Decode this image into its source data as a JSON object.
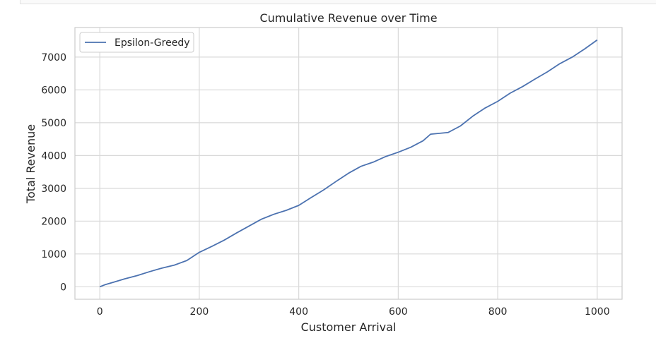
{
  "chart_data": {
    "type": "line",
    "title": "Cumulative Revenue over Time",
    "xlabel": "Customer Arrival",
    "ylabel": "Total Revenue",
    "xlim": [
      -50,
      1050
    ],
    "ylim": [
      -380,
      7900
    ],
    "xticks": [
      0,
      200,
      400,
      600,
      800,
      1000
    ],
    "yticks": [
      0,
      1000,
      2000,
      3000,
      4000,
      5000,
      6000,
      7000
    ],
    "grid": true,
    "legend_position": "top-left",
    "series": [
      {
        "name": "Epsilon-Greedy",
        "color": "#4c72b0",
        "x": [
          0,
          10,
          30,
          50,
          75,
          100,
          125,
          150,
          175,
          200,
          225,
          250,
          275,
          300,
          325,
          350,
          375,
          400,
          425,
          450,
          475,
          500,
          525,
          550,
          575,
          600,
          625,
          650,
          665,
          700,
          725,
          750,
          775,
          800,
          825,
          850,
          875,
          900,
          925,
          950,
          975,
          1000
        ],
        "y": [
          0,
          60,
          150,
          240,
          340,
          460,
          570,
          660,
          800,
          1050,
          1230,
          1420,
          1640,
          1850,
          2060,
          2210,
          2330,
          2480,
          2720,
          2950,
          3210,
          3460,
          3670,
          3800,
          3970,
          4100,
          4250,
          4450,
          4650,
          4700,
          4900,
          5200,
          5450,
          5650,
          5900,
          6100,
          6330,
          6550,
          6800,
          7000,
          7250,
          7520
        ]
      }
    ]
  }
}
